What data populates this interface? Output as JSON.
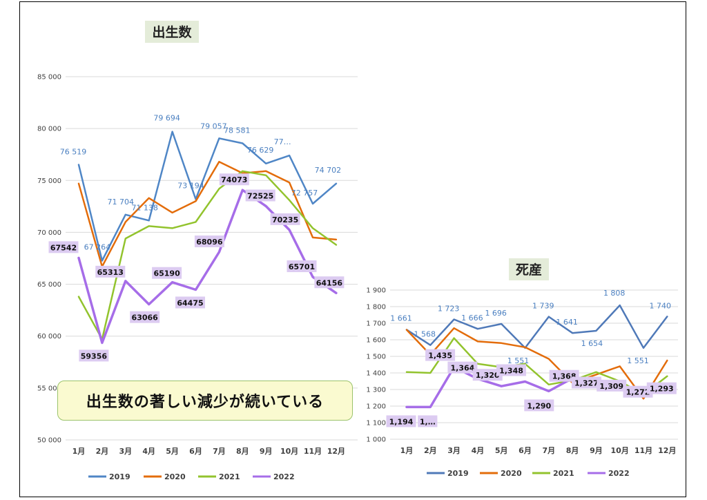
{
  "banner": {
    "text": "出生数の著しい減少が続いている"
  },
  "chart_data": [
    {
      "type": "line",
      "title": "出生数",
      "categories": [
        "1月",
        "2月",
        "3月",
        "4月",
        "5月",
        "6月",
        "7月",
        "8月",
        "9月",
        "10月",
        "11月",
        "12月"
      ],
      "y_ticks": [
        "50 000",
        "55 000",
        "60 000",
        "65 000",
        "70 000",
        "75 000",
        "80 000",
        "85 000"
      ],
      "ylim": [
        50000,
        85000
      ],
      "series": [
        {
          "name": "2019",
          "color": "#4f86c6",
          "values": [
            76519,
            67264,
            71704,
            71138,
            79694,
            73194,
            79057,
            78581,
            76629,
            77400,
            72757,
            74702
          ],
          "labels": [
            "76 519",
            "67 264",
            "71 704",
            "71 138",
            "79 694",
            "73 194",
            "79 057",
            "78 581",
            "76 629",
            "77…",
            "72 757",
            "74 702"
          ]
        },
        {
          "name": "2020",
          "color": "#e36c0a",
          "values": [
            74700,
            66700,
            71000,
            73300,
            71900,
            73000,
            76800,
            75700,
            75900,
            74800,
            69500,
            69300
          ]
        },
        {
          "name": "2021",
          "color": "#92c32d",
          "values": [
            63800,
            59700,
            69400,
            70600,
            70400,
            71000,
            74200,
            75900,
            75500,
            73100,
            70400,
            68800
          ]
        },
        {
          "name": "2022",
          "color": "#a66de8",
          "values": [
            67542,
            59356,
            65313,
            63066,
            65190,
            64475,
            68096,
            74073,
            72525,
            70235,
            65701,
            64156
          ],
          "labels": [
            "67542",
            "59356",
            "65313",
            "63066",
            "65190",
            "64475",
            "68096",
            "74073",
            "72525",
            "70235",
            "65701",
            "64156"
          ]
        }
      ],
      "legend": [
        "2019",
        "2020",
        "2021",
        "2022"
      ]
    },
    {
      "type": "line",
      "title": "死産",
      "categories": [
        "1月",
        "2月",
        "3月",
        "4月",
        "5月",
        "6月",
        "7月",
        "8月",
        "9月",
        "10月",
        "11月",
        "12月"
      ],
      "y_ticks": [
        "1 000",
        "1 100",
        "1 200",
        "1 300",
        "1 400",
        "1 500",
        "1 600",
        "1 700",
        "1 800",
        "1 900"
      ],
      "ylim": [
        1000,
        1900
      ],
      "series": [
        {
          "name": "2019",
          "color": "#4f79b8",
          "values": [
            1661,
            1568,
            1723,
            1666,
            1696,
            1551,
            1739,
            1641,
            1654,
            1808,
            1551,
            1740
          ],
          "labels": [
            "1 661",
            "1 568",
            "1 723",
            "1 666",
            "1 696",
            "1 551",
            "1 739",
            "1 641",
            "1 654",
            "1 808",
            "1 551",
            "1 740"
          ]
        },
        {
          "name": "2020",
          "color": "#e36c0a",
          "values": [
            1660,
            1510,
            1670,
            1590,
            1580,
            1555,
            1485,
            1340,
            1390,
            1440,
            1245,
            1475
          ]
        },
        {
          "name": "2021",
          "color": "#92c32d",
          "values": [
            1405,
            1400,
            1610,
            1455,
            1435,
            1455,
            1330,
            1355,
            1405,
            1350,
            1270,
            1380
          ]
        },
        {
          "name": "2022",
          "color": "#a66de8",
          "values": [
            1194,
            1194,
            1435,
            1364,
            1320,
            1348,
            1290,
            1368,
            1327,
            1309,
            1272,
            1293
          ],
          "labels": [
            "1,194",
            "1,…",
            "1,435",
            "1,364",
            "1,320",
            "1,348",
            "1,290",
            "1,368",
            "1,327",
            "1,309",
            "1,272",
            "1,293"
          ]
        }
      ],
      "legend": [
        "2019",
        "2020",
        "2021",
        "2022"
      ]
    }
  ]
}
